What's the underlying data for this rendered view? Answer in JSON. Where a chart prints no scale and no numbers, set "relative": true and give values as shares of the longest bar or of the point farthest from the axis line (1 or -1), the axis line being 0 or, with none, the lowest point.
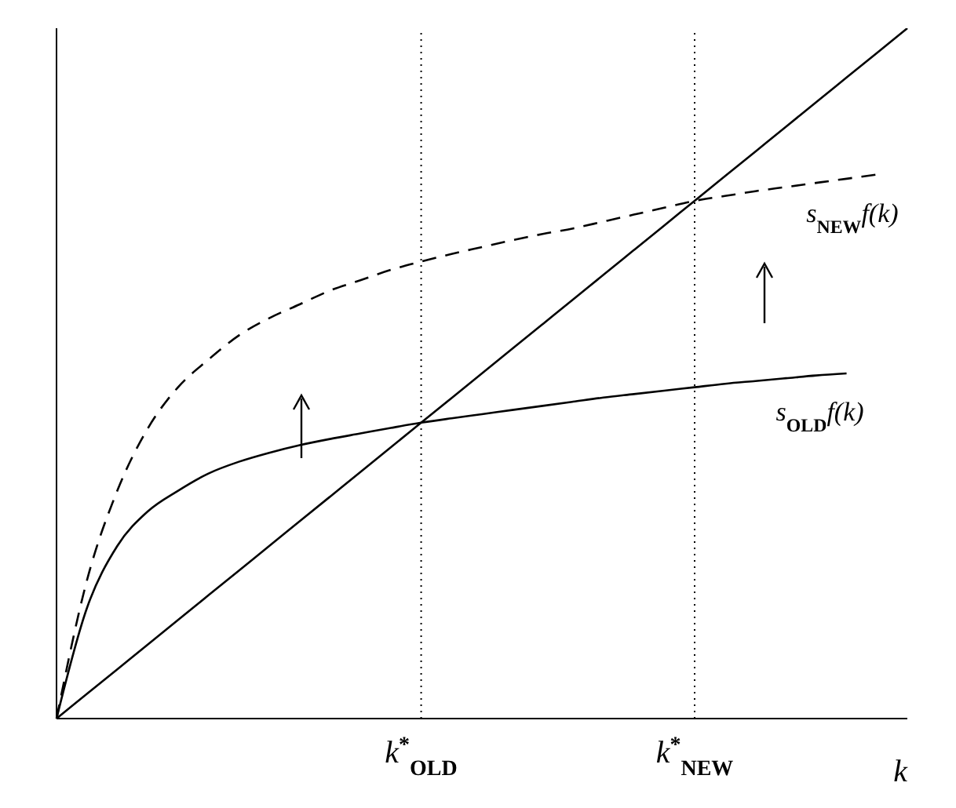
{
  "chart_data": {
    "type": "line",
    "relative": true,
    "xlabel": "k",
    "categories": [
      null,
      null,
      null,
      null,
      null,
      null,
      null,
      null,
      null,
      null,
      null,
      null,
      "k$^{*}$$_{OLD}$",
      null,
      null,
      null,
      null,
      null,
      null,
      null,
      null,
      "k$^{*}$$_{NEW}$",
      null,
      null,
      null,
      null,
      null,
      null,
      null
    ],
    "series": [
      {
        "color": "#000000",
        "line_style": "solid",
        "values": [
          0,
          0.0357,
          0.0714,
          0.1071,
          0.1429,
          0.1786,
          0.2143,
          0.25,
          0.2857,
          0.3214,
          0.3571,
          0.3929,
          0.4286,
          0.4643,
          0.5,
          0.5357,
          0.5714,
          0.6071,
          0.6429,
          0.6786,
          0.7143,
          0.75,
          0.7857,
          0.8214,
          0.8571,
          0.8929,
          0.9286,
          0.9643,
          1
        ]
      },
      {
        "name": "s$_{OLD}$f(k)",
        "color": "#000000",
        "line_style": "solid",
        "values": [
          0,
          0.16,
          0.25,
          0.3,
          0.33,
          0.355,
          0.372,
          0.385,
          0.396,
          0.405,
          0.413,
          0.421,
          0.4286,
          0.435,
          0.441,
          0.447,
          0.453,
          0.459,
          0.465,
          0.47,
          0.475,
          0.48,
          0.485,
          0.489,
          0.493,
          0.497,
          0.5,
          null,
          null
        ]
      },
      {
        "name": "s$_{NEW}$f(k)",
        "color": "#000000",
        "line_style": "dashed",
        "values": [
          0,
          0.2,
          0.33,
          0.42,
          0.48,
          0.52,
          0.555,
          0.58,
          0.6,
          0.62,
          0.635,
          0.65,
          0.662,
          0.673,
          0.683,
          0.693,
          0.702,
          0.71,
          0.72,
          0.73,
          0.74,
          0.75,
          0.757,
          0.764,
          0.77,
          0.776,
          0.782,
          0.788,
          null
        ]
      }
    ],
    "ref_lines": [
      {
        "axis": "x",
        "value": "k$^{*}$$_{OLD}$",
        "line_style": "dotted"
      },
      {
        "axis": "x",
        "value": "k$^{*}$$_{NEW}$",
        "line_style": "dotted"
      }
    ],
    "marker": "none"
  }
}
